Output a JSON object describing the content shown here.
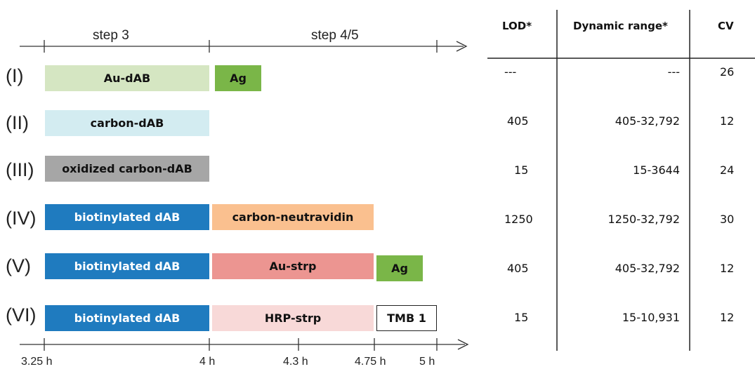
{
  "timeline": {
    "step_labels": [
      "step 3",
      "step 4/5"
    ],
    "time_ticks": [
      "3.25 h",
      "4 h",
      "4.3 h",
      "4.75 h",
      "5 h"
    ]
  },
  "rows": [
    {
      "label": "(I)",
      "bars": [
        {
          "text": "Au-dAB",
          "color": "#d5e6c2"
        },
        {
          "text": "Ag",
          "color": "#7ab648"
        }
      ]
    },
    {
      "label": "(II)",
      "bars": [
        {
          "text": "carbon-dAB",
          "color": "#d3ecf1"
        }
      ]
    },
    {
      "label": "(III)",
      "bars": [
        {
          "text": "oxidized carbon-dAB",
          "color": "#a6a6a6"
        }
      ]
    },
    {
      "label": "(IV)",
      "bars": [
        {
          "text": "biotinylated dAB",
          "color": "#1f7bbf"
        },
        {
          "text": "carbon-neutravidin",
          "color": "#fac08f"
        }
      ]
    },
    {
      "label": "(V)",
      "bars": [
        {
          "text": "biotinylated dAB",
          "color": "#1f7bbf"
        },
        {
          "text": "Au-strp",
          "color": "#ec9591"
        },
        {
          "text": "Ag",
          "color": "#7ab648"
        }
      ]
    },
    {
      "label": "(VI)",
      "bars": [
        {
          "text": "biotinylated dAB",
          "color": "#1f7bbf"
        },
        {
          "text": "HRP-strp",
          "color": "#f8d9d8"
        },
        {
          "text": "TMB 1",
          "color": "#ffffff"
        }
      ]
    }
  ],
  "table": {
    "headers": [
      "LOD*",
      "Dynamic range*",
      "CV"
    ],
    "rows": [
      [
        "---",
        "---",
        "26"
      ],
      [
        "405",
        "405-32,792",
        "12"
      ],
      [
        "15",
        "15-3644",
        "24"
      ],
      [
        "1250",
        "1250-32,792",
        "30"
      ],
      [
        "405",
        "405-32,792",
        "12"
      ],
      [
        "15",
        "15-10,931",
        "12"
      ]
    ]
  }
}
